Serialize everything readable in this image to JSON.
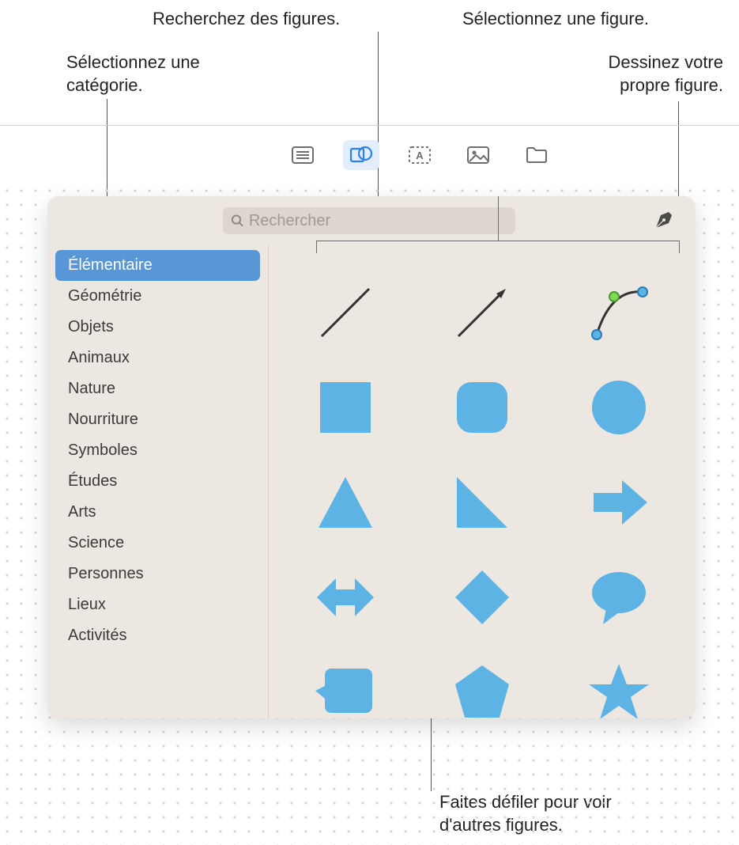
{
  "callouts": {
    "search": "Recherchez des figures.",
    "select_shape": "Sélectionnez une figure.",
    "select_category_l1": "Sélectionnez une",
    "select_category_l2": "catégorie.",
    "draw_own_l1": "Dessinez votre",
    "draw_own_l2": "propre figure.",
    "scroll_l1": "Faites défiler pour voir",
    "scroll_l2": "d'autres figures."
  },
  "toolbar": {
    "buttons": [
      "list",
      "shapes",
      "text",
      "media",
      "folder"
    ],
    "active_index": 1
  },
  "search": {
    "placeholder": "Rechercher"
  },
  "palette": {
    "shape_fill": "#5cb3e4",
    "stroke": "#333333",
    "sidebar_selected_bg": "#5896d6",
    "panel_bg": "#ece7e1",
    "search_bg": "#dcd6ce"
  },
  "sidebar": {
    "selected_index": 0,
    "items": [
      {
        "label": "Élémentaire"
      },
      {
        "label": "Géométrie"
      },
      {
        "label": "Objets"
      },
      {
        "label": "Animaux"
      },
      {
        "label": "Nature"
      },
      {
        "label": "Nourriture"
      },
      {
        "label": "Symboles"
      },
      {
        "label": "Études"
      },
      {
        "label": "Arts"
      },
      {
        "label": "Science"
      },
      {
        "label": "Personnes"
      },
      {
        "label": "Lieux"
      },
      {
        "label": "Activités"
      }
    ]
  },
  "shapes": [
    {
      "name": "line"
    },
    {
      "name": "arrow-line"
    },
    {
      "name": "bezier-curve"
    },
    {
      "name": "square"
    },
    {
      "name": "rounded-square"
    },
    {
      "name": "circle"
    },
    {
      "name": "triangle"
    },
    {
      "name": "right-triangle"
    },
    {
      "name": "arrow-right"
    },
    {
      "name": "arrow-double"
    },
    {
      "name": "diamond"
    },
    {
      "name": "speech-bubble"
    },
    {
      "name": "callout-box"
    },
    {
      "name": "pentagon"
    },
    {
      "name": "star"
    }
  ]
}
